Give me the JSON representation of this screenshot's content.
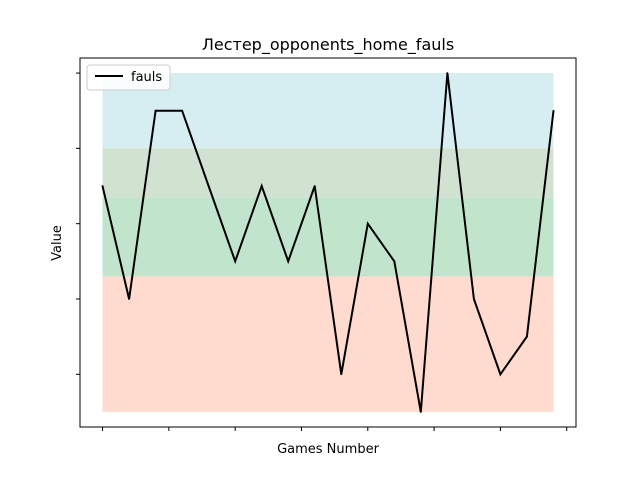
{
  "chart_data": {
    "type": "line",
    "title": "Лестер_opponents_home_fauls",
    "xlabel": "Games Number",
    "ylabel": "Value",
    "x": [
      0,
      1,
      2,
      3,
      4,
      5,
      6,
      7,
      8,
      9,
      10,
      11,
      12,
      13,
      14,
      15,
      16,
      17
    ],
    "series": [
      {
        "name": "fauls",
        "color": "#000000",
        "values": [
          12,
          9,
          14,
          14,
          12,
          10,
          12,
          10,
          12,
          7,
          11,
          10,
          6,
          15,
          9,
          7,
          8,
          14
        ]
      }
    ],
    "xlim": [
      -0.85,
      17.85
    ],
    "ylim": [
      5.6,
      15.4
    ],
    "x_ticks": [
      0,
      2.5,
      5,
      7.5,
      10,
      12.5,
      15,
      17.5
    ],
    "y_ticks": [
      7,
      9,
      11,
      13,
      15
    ],
    "tick_labels_visible": false,
    "grid": false,
    "legend_position": "top-left",
    "bands": [
      {
        "from": 6,
        "to": 9.6,
        "color": "#ffdace"
      },
      {
        "from": 9.6,
        "to": 11.7,
        "color": "#c0e5cc"
      },
      {
        "from": 11.7,
        "to": 13,
        "color": "#d2e2d1"
      },
      {
        "from": 13,
        "to": 15,
        "color": "#d6eef2"
      }
    ]
  }
}
